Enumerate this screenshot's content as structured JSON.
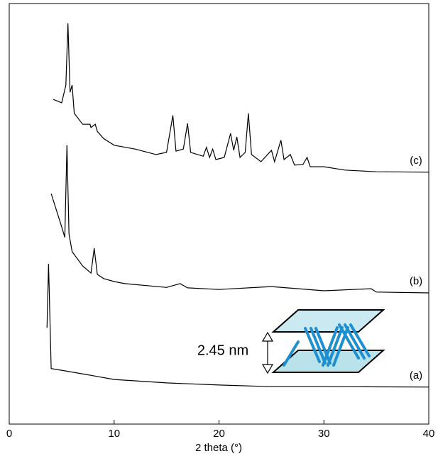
{
  "chart_data": {
    "type": "line",
    "xlabel": "2 theta (°)",
    "xlim": [
      0,
      40
    ],
    "xticks": [
      0,
      10,
      20,
      30,
      40
    ],
    "ylim": [
      0,
      100
    ],
    "annotation": "2.45 nm",
    "series": [
      {
        "name": "(a)",
        "color": "#000000",
        "x": [
          3.6,
          3.75,
          4.0,
          5,
          8,
          10,
          15,
          20,
          25,
          30,
          40
        ],
        "values": [
          22.9,
          38.1,
          13.2,
          12.8,
          11.5,
          10.6,
          9.8,
          9.3,
          8.9,
          8.9,
          8.8
        ]
      },
      {
        "name": "(b)",
        "color": "#000000",
        "x": [
          4.0,
          5.0,
          5.3,
          5.5,
          5.7,
          6,
          7,
          7.8,
          8.1,
          8.4,
          9,
          10,
          11,
          15,
          16.3,
          17,
          20,
          25,
          30,
          34.5,
          35,
          40
        ],
        "values": [
          54.8,
          46.9,
          44.4,
          66.3,
          45.2,
          41.0,
          37.6,
          35.9,
          41.8,
          35.6,
          34.6,
          33.9,
          33.4,
          32.5,
          33.4,
          32.4,
          32.0,
          32.7,
          31.7,
          32.2,
          31.4,
          31.2
        ]
      },
      {
        "name": "(c)",
        "color": "#000000",
        "x": [
          4.2,
          5,
          5.4,
          5.6,
          5.8,
          6.0,
          6.2,
          7,
          7.7,
          7.8,
          8.2,
          8.4,
          9,
          10,
          12,
          14,
          15,
          15.6,
          15.9,
          16.6,
          17.0,
          17.3,
          18.5,
          18.8,
          19.1,
          19.4,
          19.7,
          20.5,
          21.1,
          21.4,
          21.7,
          22.0,
          22.5,
          22.8,
          23.1,
          24,
          25,
          25.3,
          25.9,
          26.2,
          26.8,
          27.2,
          28,
          28.4,
          28.7,
          30,
          32,
          35,
          40
        ],
        "values": [
          77.2,
          76.4,
          80.6,
          95.3,
          78.9,
          80.6,
          73.9,
          71.3,
          71.3,
          70.5,
          71.3,
          69.6,
          67.9,
          66.3,
          65.4,
          64.1,
          64.6,
          73.4,
          64.9,
          65.4,
          71.5,
          64.6,
          63.7,
          65.8,
          63.4,
          65.4,
          62.9,
          63.4,
          69.1,
          65.1,
          68.3,
          63.4,
          64.6,
          73.9,
          64.1,
          62.4,
          65.1,
          62.4,
          67.5,
          62.9,
          64.1,
          61.6,
          61.7,
          63.4,
          61.2,
          61.2,
          60.4,
          60.0,
          59.9
        ]
      }
    ]
  }
}
